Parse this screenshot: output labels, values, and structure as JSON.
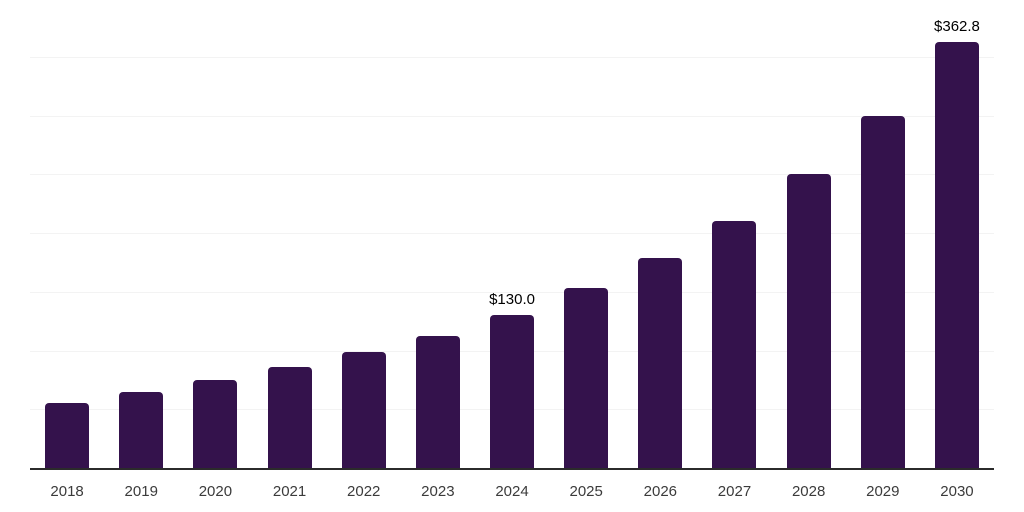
{
  "chart_data": {
    "type": "bar",
    "title": "",
    "xlabel": "",
    "ylabel": "",
    "categories": [
      "2018",
      "2019",
      "2020",
      "2021",
      "2022",
      "2023",
      "2024",
      "2025",
      "2026",
      "2027",
      "2028",
      "2029",
      "2030"
    ],
    "values": [
      55.4,
      65.0,
      75.2,
      85.6,
      98.5,
      112.4,
      130.0,
      153.5,
      178.9,
      209.9,
      250.0,
      299.3,
      362.8
    ],
    "data_labels": [
      "",
      "",
      "",
      "",
      "",
      "",
      "$130.0",
      "",
      "",
      "",
      "",
      "",
      "$362.8"
    ],
    "ylim": [
      0,
      400
    ],
    "gridline_step": 50,
    "grid": true,
    "legend": false,
    "colors": {
      "bar": "#34124C",
      "axis": "#2b2b2b",
      "gridline": "#f3f3f3",
      "data_label": "#000000",
      "tick_label": "#3b3b3b"
    }
  }
}
